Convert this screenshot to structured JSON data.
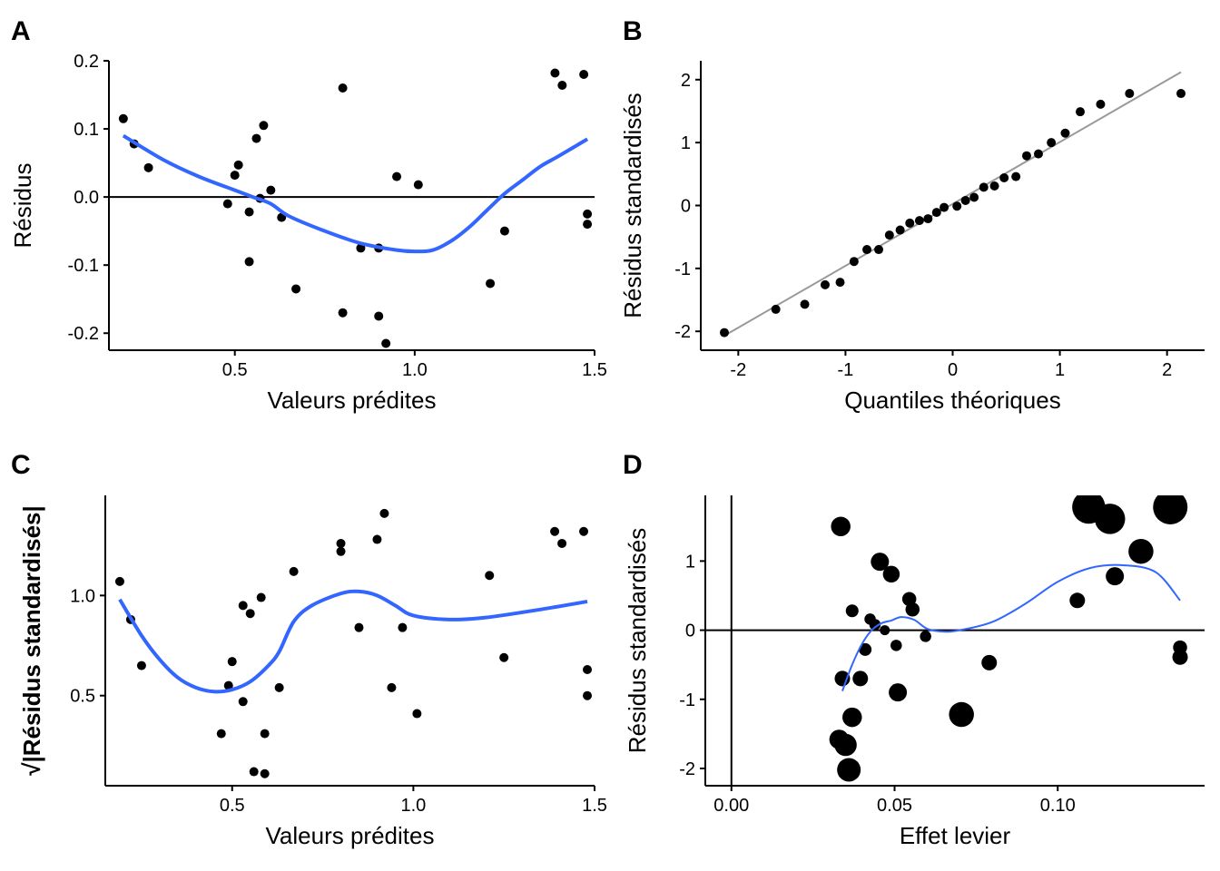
{
  "colors": {
    "smooth": "#3366FF",
    "points": "#000000",
    "qqline": "#999999",
    "ref": "#000000"
  },
  "chart_data": [
    {
      "id": "A",
      "type": "scatter",
      "panel_label": "A",
      "xlabel": "Valeurs prédites",
      "ylabel": "Résidus",
      "xlim": [
        0.15,
        1.5
      ],
      "ylim": [
        -0.225,
        0.2
      ],
      "xticks": [
        0.5,
        1.0,
        1.5
      ],
      "xtick_labels": [
        "0.5",
        "1.0",
        "1.5"
      ],
      "yticks": [
        -0.2,
        -0.1,
        0.0,
        0.1,
        0.2
      ],
      "ytick_labels": [
        "-0.2",
        "-0.1",
        "0.0",
        "0.1",
        "0.2"
      ],
      "hline": 0,
      "points": [
        [
          0.19,
          0.115
        ],
        [
          0.22,
          0.078
        ],
        [
          0.26,
          0.043
        ],
        [
          0.48,
          -0.01
        ],
        [
          0.5,
          0.032
        ],
        [
          0.51,
          0.047
        ],
        [
          0.54,
          -0.022
        ],
        [
          0.54,
          -0.095
        ],
        [
          0.56,
          0.086
        ],
        [
          0.57,
          -0.002
        ],
        [
          0.58,
          0.105
        ],
        [
          0.6,
          0.01
        ],
        [
          0.63,
          -0.03
        ],
        [
          0.67,
          -0.135
        ],
        [
          0.8,
          0.16
        ],
        [
          0.8,
          -0.17
        ],
        [
          0.85,
          -0.075
        ],
        [
          0.9,
          -0.175
        ],
        [
          0.92,
          -0.215
        ],
        [
          0.9,
          -0.075
        ],
        [
          0.95,
          0.03
        ],
        [
          1.01,
          0.018
        ],
        [
          1.21,
          -0.127
        ],
        [
          1.25,
          -0.05
        ],
        [
          1.39,
          0.182
        ],
        [
          1.41,
          0.164
        ],
        [
          1.47,
          0.18
        ],
        [
          1.48,
          -0.025
        ],
        [
          1.48,
          -0.04
        ]
      ],
      "smooth": [
        [
          0.19,
          0.09
        ],
        [
          0.3,
          0.055
        ],
        [
          0.4,
          0.03
        ],
        [
          0.5,
          0.01
        ],
        [
          0.55,
          0.0
        ],
        [
          0.6,
          -0.01
        ],
        [
          0.65,
          -0.028
        ],
        [
          0.75,
          -0.05
        ],
        [
          0.85,
          -0.068
        ],
        [
          0.95,
          -0.078
        ],
        [
          1.0,
          -0.08
        ],
        [
          1.05,
          -0.078
        ],
        [
          1.1,
          -0.065
        ],
        [
          1.15,
          -0.045
        ],
        [
          1.2,
          -0.02
        ],
        [
          1.25,
          0.005
        ],
        [
          1.3,
          0.025
        ],
        [
          1.35,
          0.045
        ],
        [
          1.4,
          0.06
        ],
        [
          1.48,
          0.085
        ]
      ]
    },
    {
      "id": "B",
      "type": "scatter",
      "panel_label": "B",
      "xlabel": "Quantiles théoriques",
      "ylabel": "Résidus standardisés",
      "xlim": [
        -2.35,
        2.35
      ],
      "ylim": [
        -2.3,
        2.3
      ],
      "xticks": [
        -2,
        -1,
        0,
        1,
        2
      ],
      "xtick_labels": [
        "-2",
        "-1",
        "0",
        "1",
        "2"
      ],
      "yticks": [
        -2,
        -1,
        0,
        1,
        2
      ],
      "ytick_labels": [
        "-2",
        "-1",
        "0",
        "1",
        "2"
      ],
      "qqline": [
        [
          -2.13,
          -2.07
        ],
        [
          2.13,
          2.12
        ]
      ],
      "points": [
        [
          -2.13,
          -2.02
        ],
        [
          -1.65,
          -1.65
        ],
        [
          -1.38,
          -1.57
        ],
        [
          -1.19,
          -1.26
        ],
        [
          -1.05,
          -1.22
        ],
        [
          -0.92,
          -0.89
        ],
        [
          -0.8,
          -0.7
        ],
        [
          -0.69,
          -0.7
        ],
        [
          -0.59,
          -0.47
        ],
        [
          -0.49,
          -0.39
        ],
        [
          -0.4,
          -0.28
        ],
        [
          -0.31,
          -0.24
        ],
        [
          -0.23,
          -0.21
        ],
        [
          -0.15,
          -0.11
        ],
        [
          -0.08,
          -0.03
        ],
        [
          0.04,
          -0.01
        ],
        [
          0.12,
          0.08
        ],
        [
          0.2,
          0.13
        ],
        [
          0.29,
          0.29
        ],
        [
          0.39,
          0.31
        ],
        [
          0.48,
          0.44
        ],
        [
          0.59,
          0.46
        ],
        [
          0.69,
          0.79
        ],
        [
          0.8,
          0.82
        ],
        [
          0.92,
          1.0
        ],
        [
          1.05,
          1.15
        ],
        [
          1.19,
          1.49
        ],
        [
          1.38,
          1.61
        ],
        [
          1.65,
          1.78
        ],
        [
          2.13,
          1.78
        ]
      ]
    },
    {
      "id": "C",
      "type": "scatter",
      "panel_label": "C",
      "xlabel": "Valeurs prédites",
      "ylabel": "√|Résidus standardisés|",
      "xlim": [
        0.15,
        1.5
      ],
      "ylim": [
        0.05,
        1.5
      ],
      "xticks": [
        0.5,
        1.0,
        1.5
      ],
      "xtick_labels": [
        "0.5",
        "1.0",
        "1.5"
      ],
      "yticks": [
        0.5,
        1.0
      ],
      "ytick_labels": [
        "0.5",
        "1.0"
      ],
      "points": [
        [
          0.19,
          1.07
        ],
        [
          0.22,
          0.88
        ],
        [
          0.25,
          0.65
        ],
        [
          0.47,
          0.31
        ],
        [
          0.49,
          0.55
        ],
        [
          0.5,
          0.67
        ],
        [
          0.53,
          0.47
        ],
        [
          0.53,
          0.95
        ],
        [
          0.55,
          0.91
        ],
        [
          0.56,
          0.12
        ],
        [
          0.58,
          0.99
        ],
        [
          0.59,
          0.31
        ],
        [
          0.59,
          0.11
        ],
        [
          0.63,
          0.54
        ],
        [
          0.67,
          1.12
        ],
        [
          0.8,
          1.26
        ],
        [
          0.8,
          1.22
        ],
        [
          0.85,
          0.84
        ],
        [
          0.9,
          1.28
        ],
        [
          0.92,
          1.41
        ],
        [
          0.94,
          0.54
        ],
        [
          0.97,
          0.84
        ],
        [
          1.01,
          0.41
        ],
        [
          1.21,
          1.1
        ],
        [
          1.25,
          0.69
        ],
        [
          1.39,
          1.32
        ],
        [
          1.41,
          1.26
        ],
        [
          1.47,
          1.32
        ],
        [
          1.48,
          0.63
        ],
        [
          1.48,
          0.5
        ]
      ],
      "smooth": [
        [
          0.19,
          0.98
        ],
        [
          0.25,
          0.8
        ],
        [
          0.3,
          0.68
        ],
        [
          0.35,
          0.59
        ],
        [
          0.4,
          0.54
        ],
        [
          0.45,
          0.52
        ],
        [
          0.5,
          0.53
        ],
        [
          0.55,
          0.57
        ],
        [
          0.6,
          0.65
        ],
        [
          0.63,
          0.72
        ],
        [
          0.67,
          0.87
        ],
        [
          0.72,
          0.95
        ],
        [
          0.8,
          1.01
        ],
        [
          0.85,
          1.02
        ],
        [
          0.9,
          1.0
        ],
        [
          0.95,
          0.95
        ],
        [
          1.0,
          0.9
        ],
        [
          1.1,
          0.88
        ],
        [
          1.2,
          0.89
        ],
        [
          1.35,
          0.93
        ],
        [
          1.48,
          0.97
        ]
      ]
    },
    {
      "id": "D",
      "type": "scatter",
      "panel_label": "D",
      "xlabel": "Effet levier",
      "ylabel": "Résidus standardisés",
      "xlim": [
        -0.008,
        0.145
      ],
      "ylim": [
        -2.25,
        1.95
      ],
      "xticks": [
        0.0,
        0.05,
        0.1
      ],
      "xtick_labels": [
        "0.00",
        "0.05",
        "0.10"
      ],
      "yticks": [
        -2,
        -1,
        0,
        1
      ],
      "ytick_labels": [
        "-2",
        "-1",
        "0",
        "1"
      ],
      "hline": 0,
      "vline": 0,
      "points": [
        [
          0.0335,
          1.5,
          0.09
        ],
        [
          0.033,
          -1.58,
          0.09
        ],
        [
          0.035,
          -1.66,
          0.11
        ],
        [
          0.036,
          -2.02,
          0.12
        ],
        [
          0.037,
          -1.26,
          0.09
        ],
        [
          0.034,
          -0.7,
          0.06
        ],
        [
          0.037,
          0.28,
          0.04
        ],
        [
          0.0395,
          -0.7,
          0.06
        ],
        [
          0.041,
          -0.28,
          0.04
        ],
        [
          0.0425,
          0.16,
          0.03
        ],
        [
          0.044,
          0.08,
          0.03
        ],
        [
          0.0455,
          0.99,
          0.08
        ],
        [
          0.047,
          0.0,
          0.02
        ],
        [
          0.049,
          0.81,
          0.07
        ],
        [
          0.0505,
          -0.22,
          0.03
        ],
        [
          0.051,
          -0.9,
          0.08
        ],
        [
          0.0545,
          0.45,
          0.05
        ],
        [
          0.0555,
          0.3,
          0.05
        ],
        [
          0.0595,
          -0.09,
          0.03
        ],
        [
          0.0705,
          -1.22,
          0.13
        ],
        [
          0.079,
          -0.47,
          0.06
        ],
        [
          0.106,
          0.43,
          0.06
        ],
        [
          0.1095,
          1.78,
          0.19
        ],
        [
          0.116,
          1.61,
          0.17
        ],
        [
          0.1175,
          0.78,
          0.08
        ],
        [
          0.1255,
          1.14,
          0.13
        ],
        [
          0.1345,
          1.78,
          0.2
        ],
        [
          0.1375,
          -0.25,
          0.05
        ],
        [
          0.1375,
          -0.39,
          0.06
        ]
      ],
      "smooth": [
        [
          0.034,
          -0.88
        ],
        [
          0.037,
          -0.5
        ],
        [
          0.04,
          -0.2
        ],
        [
          0.043,
          0.0
        ],
        [
          0.046,
          0.1
        ],
        [
          0.049,
          0.14
        ],
        [
          0.052,
          0.19
        ],
        [
          0.056,
          0.15
        ],
        [
          0.06,
          0.02
        ],
        [
          0.065,
          -0.02
        ],
        [
          0.07,
          0.0
        ],
        [
          0.08,
          0.12
        ],
        [
          0.09,
          0.38
        ],
        [
          0.1,
          0.7
        ],
        [
          0.11,
          0.9
        ],
        [
          0.12,
          0.94
        ],
        [
          0.13,
          0.84
        ],
        [
          0.1375,
          0.43
        ]
      ]
    }
  ]
}
